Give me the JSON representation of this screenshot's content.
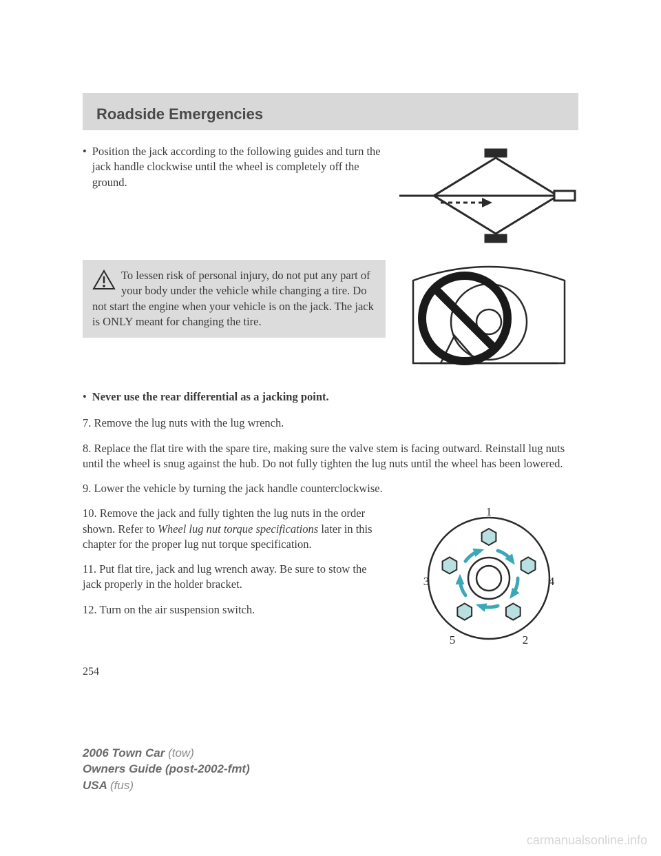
{
  "header": {
    "title": "Roadside Emergencies"
  },
  "bullet1": "Position the jack according to the following guides and turn the jack handle clockwise until the wheel is completely off the ground.",
  "warning": "To lessen risk of personal injury, do not put any part of your body under the vehicle while changing a tire. Do not start the engine when your vehicle is on the jack. The jack is ONLY meant for changing the tire.",
  "bullet2": "Never use the rear differential as a jacking point.",
  "step7": "7. Remove the lug nuts with the lug wrench.",
  "step8": "8. Replace the flat tire with the spare tire, making sure the valve stem is facing outward. Reinstall lug nuts until the wheel is snug against the hub. Do not fully tighten the lug nuts until the wheel has been lowered.",
  "step9": "9. Lower the vehicle by turning the jack handle counterclockwise.",
  "step10_a": "10. Remove the jack and fully tighten the lug nuts in the order shown. Refer to ",
  "step10_i": "Wheel lug nut torque specifications",
  "step10_b": " later in this chapter for the proper lug nut torque specification.",
  "step11": "11. Put flat tire, jack and lug wrench away. Be sure to stow the jack properly in the holder bracket.",
  "step12": "12. Turn on the air suspension switch.",
  "pagenum": "254",
  "footer": {
    "line1a": "2006 Town Car ",
    "line1b": "(tow)",
    "line2a": "Owners Guide (post-2002-fmt)",
    "line3a": "USA ",
    "line3b": "(fus)"
  },
  "watermark": "carmanualsonline.info",
  "lugnut": {
    "labels": [
      "1",
      "2",
      "3",
      "4",
      "5"
    ],
    "hex_fill": "#b8e0e0",
    "arrow_color": "#3aa8b8"
  }
}
